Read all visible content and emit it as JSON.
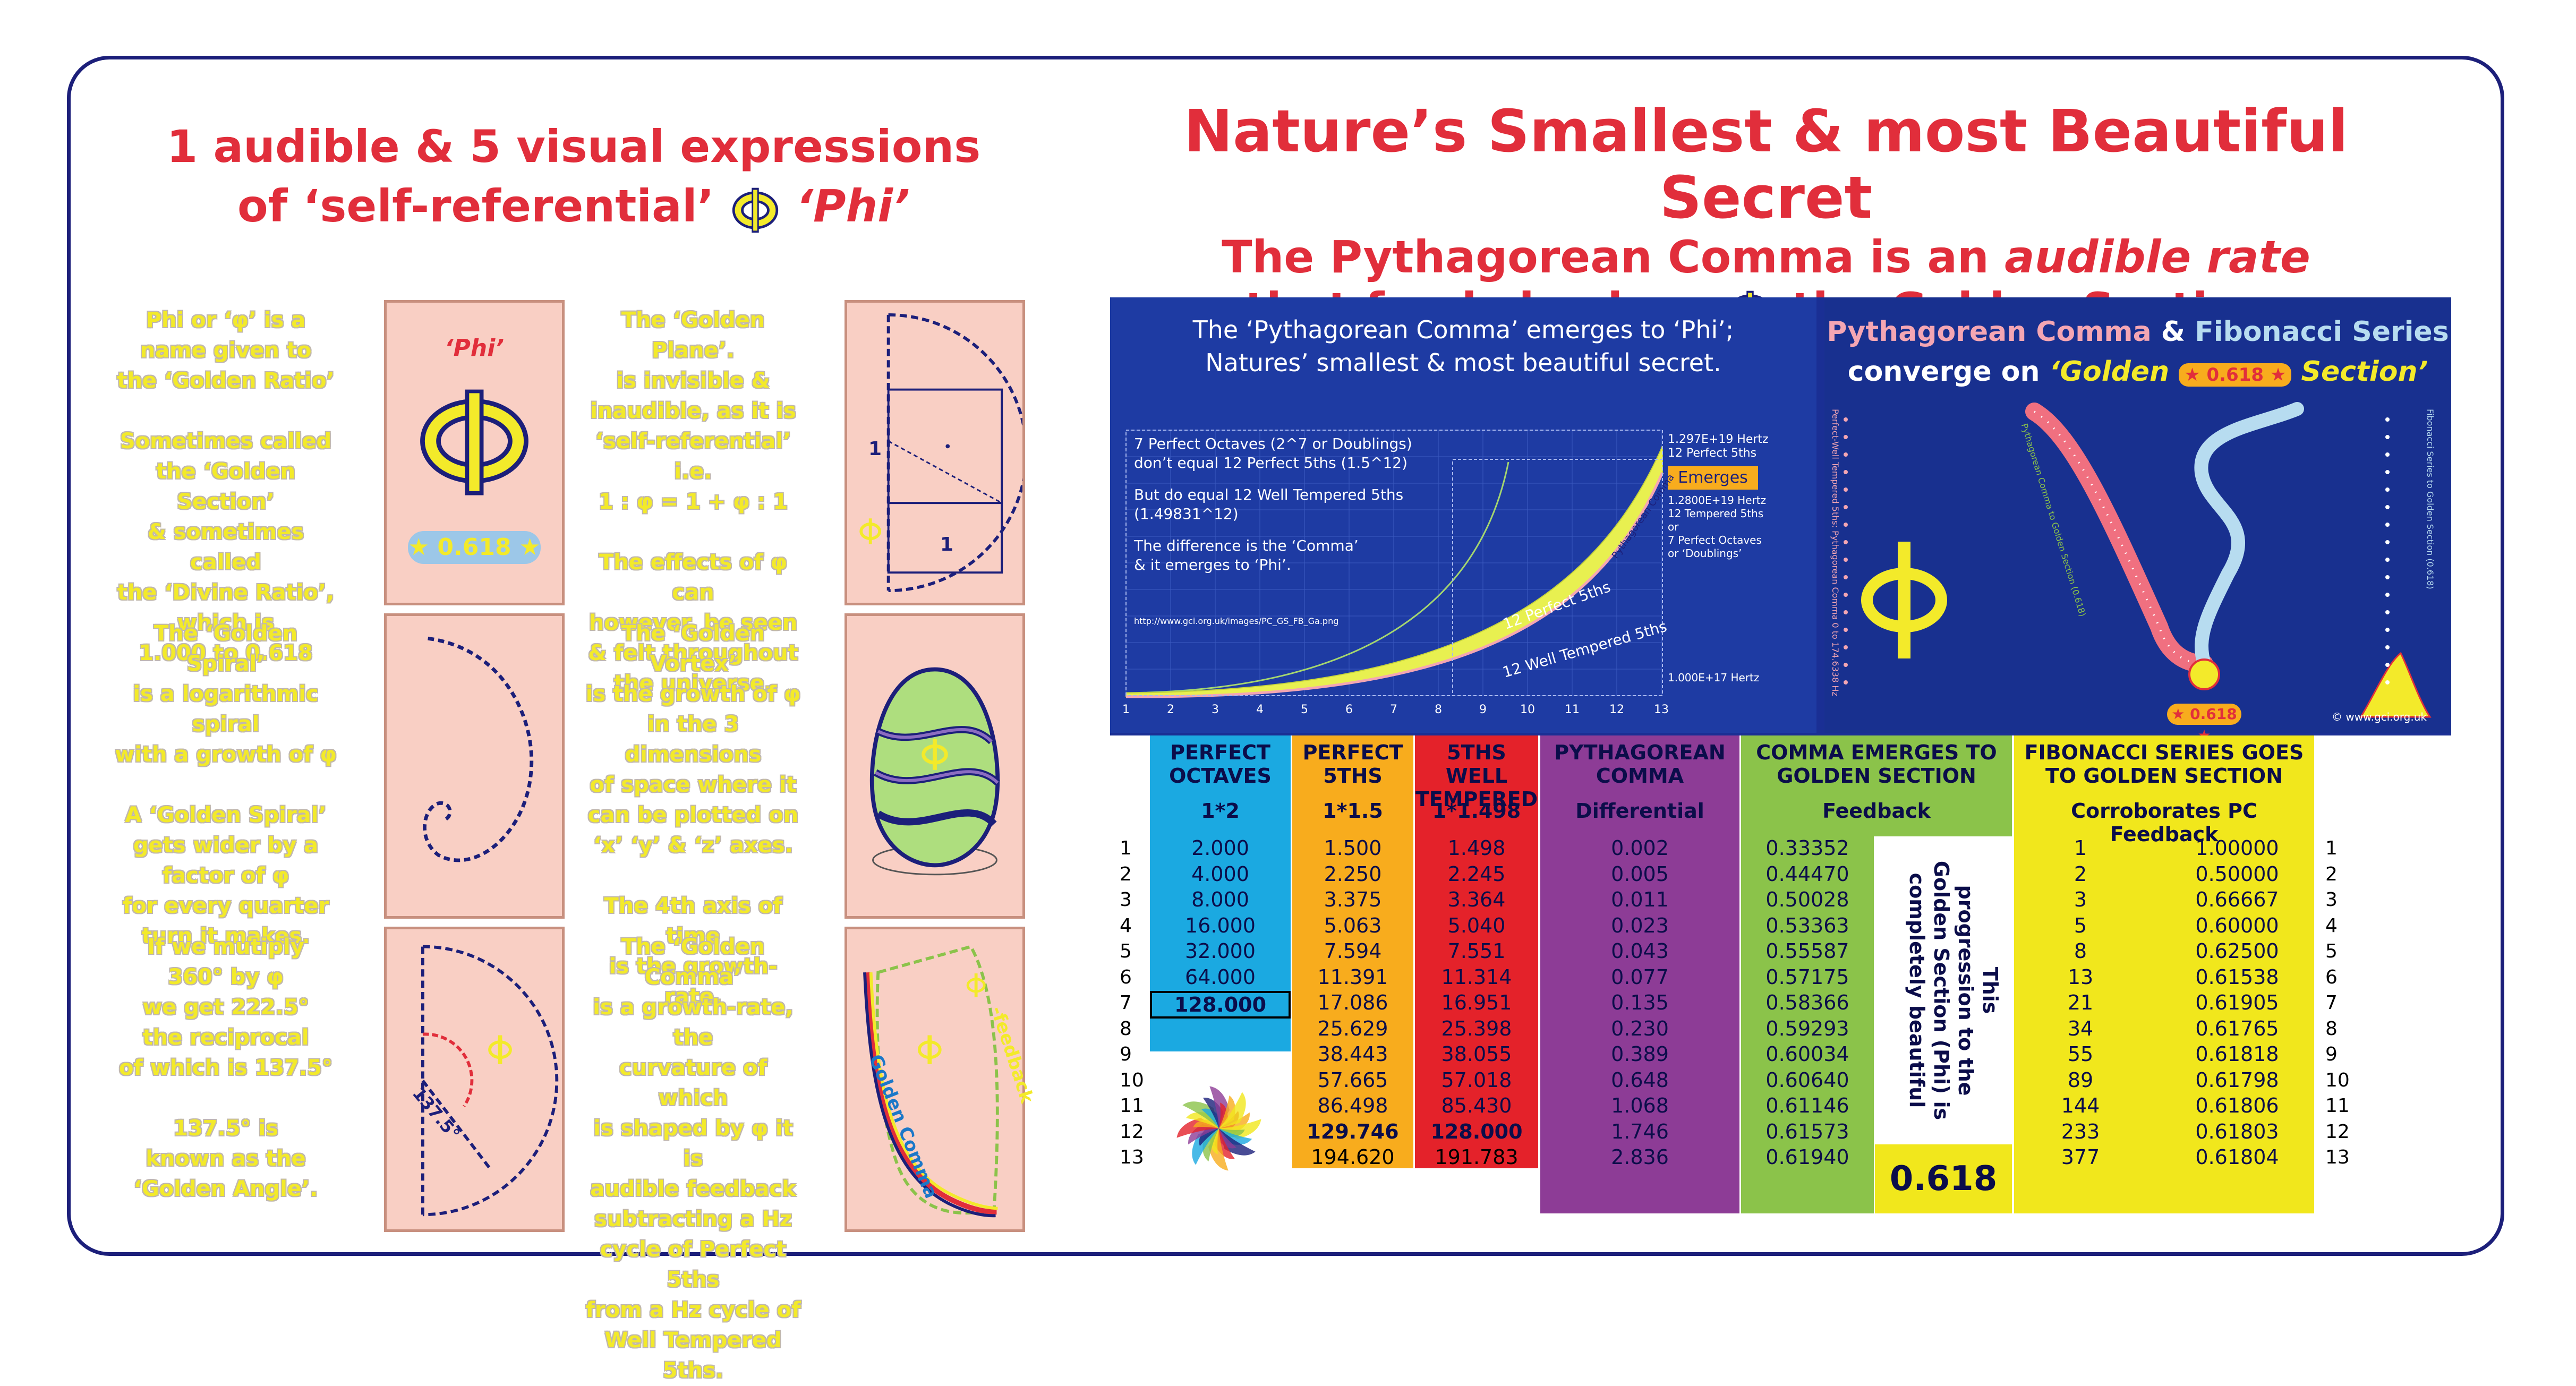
{
  "left_title": {
    "line1": "1 audible & 5 visual expressions",
    "line2a": "of ‘self-referential’",
    "line2b": "‘Phi’"
  },
  "right_title": {
    "line1": "Nature’s Smallest & most Beautiful Secret",
    "line2a": "The Pythagorean Comma is an ",
    "line2b": "audible rate",
    "line3a": "that feeds back as",
    "line3b": "the Golden Section."
  },
  "text_blocks": {
    "phi": [
      "Phi or ‘φ’ is a",
      "name given to",
      "the ‘Golden Ratio’",
      "",
      "Sometimes called",
      "the ‘Golden Section’",
      "& sometimes called",
      "the ‘Divine Ratio’,",
      "which is",
      "1.000 to 0.618"
    ],
    "plane": [
      "The ‘Golden Plane’.",
      "is invisible &",
      "inaudible, as it is",
      "‘self-referential’ i.e.",
      "1 : φ = 1 + φ : 1",
      "",
      "The effects of φ can",
      "however, be seen",
      "& felt throughout",
      "the universe."
    ],
    "spiral": [
      "The ‘Golden Spiral’",
      "is a logarithmic spiral",
      "with a growth of φ",
      "",
      "A ‘Golden Spiral’",
      "gets wider by a",
      "factor of φ",
      "for every quarter",
      "turn it makes."
    ],
    "vortex": [
      "The ‘Golden Vortex’",
      "is the growth of φ",
      "in the 3 dimensions",
      "of space where it",
      "can be plotted on",
      "‘x’ ‘y’ & ‘z’ axes.",
      "",
      "The 4th axis of time",
      "is the growth-rate."
    ],
    "angle": [
      "If we mutiply",
      "360° by φ",
      "we get 222.5°",
      "the reciprocal",
      "of which is 137.5°",
      "",
      "137.5° is",
      "known as the",
      "‘Golden Angle’."
    ],
    "comma": [
      "The ‘Golden Comma’",
      "is a growth-rate, the",
      "curvature of which",
      "is shaped by φ it is",
      "audible feedback",
      "subtracting a Hz",
      "cycle of Perfect 5ths",
      "from a Hz cycle of",
      "Well Tempered 5ths."
    ]
  },
  "panels": {
    "phi_label": "‘Phi’",
    "phi_value": "★ 0.618 ★",
    "plane_one_a": "1",
    "plane_one_b": "1",
    "angle_label": "137.5°",
    "comma_golden": "Golden Comma",
    "comma_feedback": "-feedback"
  },
  "chart": {
    "title1": "The ‘Pythagorean Comma’ emerges to ‘Phi’;",
    "title2": "Natures’ smallest & most beautiful secret.",
    "note1": "7 Perfect Octaves (2^7 or Doublings)",
    "note2": "don’t equal 12 Perfect 5ths (1.5^12)",
    "note3": "But do equal 12 Well Tempered 5ths",
    "note4": "(1.49831^12)",
    "note5": "The difference is the ‘Comma’",
    "note6": "& it emerges to ‘Phi’.",
    "url": "http://www.gci.org.uk/images/PC_GS_FB_Ga.png",
    "top_hz1": "1.297E+19 Hertz",
    "top_hz2": "12 Perfect 5ths",
    "emerges": "Emerges",
    "mid1": "1.2800E+19 Hertz",
    "mid2": "12 Tempered 5ths",
    "mid3": "or",
    "mid4": "7 Perfect Octaves",
    "mid5": "or ‘Doublings’",
    "bottom_hz": "1.000E+17 Hertz",
    "label_p5": "12 Perfect 5ths",
    "label_wt": "12 Well Tempered 5ths",
    "label_pc": "Pythagorean Comma",
    "x_ticks": [
      "1",
      "2",
      "3",
      "4",
      "5",
      "6",
      "7",
      "8",
      "9",
      "10",
      "11",
      "12",
      "13"
    ]
  },
  "right_panel": {
    "t1a": "Pythagorean Comma",
    "t1b": " & ",
    "t1c": "Fibonacci Series",
    "t2a": "converge on ",
    "t2b": "‘Golden",
    "t2c": "★ 0.618 ★",
    "t2d": "Section’",
    "badge": "★ 0.618 ★",
    "credit": "© www.gci.org.uk",
    "vert1": "Perfect-Well Tempered 5ths: Pythagorean Comma 0 to 174.6338 Hz",
    "vert2": "Pythagorean Comma to Golden Section (0.618)",
    "vert3": "Fibonacci Series to Golden Section (0.618)"
  },
  "table": {
    "headers": {
      "oct": [
        "PERFECT",
        "OCTAVES"
      ],
      "p5": [
        "PERFECT",
        "5THS"
      ],
      "wt": [
        "5THS WELL",
        "TEMPERED"
      ],
      "pc": [
        "PYTHAGOREAN",
        "COMMA"
      ],
      "ce": [
        "COMMA EMERGES TO",
        "GOLDEN SECTION"
      ],
      "fib": [
        "FIBONACCI SERIES GOES",
        "TO GOLDEN SECTION"
      ]
    },
    "subs": {
      "oct": "1*2",
      "p5": "1*1.5",
      "wt": "1*1.498",
      "pc": "Differential",
      "ce": "Feedback",
      "fib": "Corroborates PC Feedback"
    },
    "row_numbers": [
      "1",
      "2",
      "3",
      "4",
      "5",
      "6",
      "7",
      "8",
      "9",
      "10",
      "11",
      "12",
      "13"
    ],
    "octaves": [
      "2.000",
      "4.000",
      "8.000",
      "16.000",
      "32.000",
      "64.000",
      "128.000"
    ],
    "perfect5": [
      "1.500",
      "2.250",
      "3.375",
      "5.063",
      "7.594",
      "11.391",
      "17.086",
      "25.629",
      "38.443",
      "57.665",
      "86.498",
      "129.746",
      "194.620"
    ],
    "tempered": [
      "1.498",
      "2.245",
      "3.364",
      "5.040",
      "7.551",
      "11.314",
      "16.951",
      "25.398",
      "38.055",
      "57.018",
      "85.430",
      "128.000",
      "191.783"
    ],
    "comma": [
      "0.002",
      "0.005",
      "0.011",
      "0.023",
      "0.043",
      "0.077",
      "0.135",
      "0.230",
      "0.389",
      "0.648",
      "1.068",
      "1.746",
      "2.836"
    ],
    "feedback": [
      "0.33352",
      "0.44470",
      "0.50028",
      "0.53363",
      "0.55587",
      "0.57175",
      "0.58366",
      "0.59293",
      "0.60034",
      "0.60640",
      "0.61146",
      "0.61573",
      "0.61940"
    ],
    "progression_note": [
      "This",
      "progression to the",
      "Golden Section (Phi) is",
      "completely beautiful"
    ],
    "golden_value": "0.618",
    "fib_n": [
      "1",
      "2",
      "3",
      "5",
      "8",
      "13",
      "21",
      "34",
      "55",
      "89",
      "144",
      "233",
      "377"
    ],
    "fib_ratio": [
      "1.00000",
      "0.50000",
      "0.66667",
      "0.60000",
      "0.62500",
      "0.61538",
      "0.61905",
      "0.61765",
      "0.61818",
      "0.61798",
      "0.61806",
      "0.61803",
      "0.61804"
    ]
  },
  "colors": {
    "title_red": "#e12e3b",
    "frame_navy": "#1c1f7a",
    "phi_yellow": "#f3ea2a",
    "panel_pink": "#f9cfc4",
    "oct_blue": "#1ba9e1",
    "p5_orange": "#f8ac1d",
    "wt_red": "#e4222a",
    "pc_purple": "#8d3c96",
    "ce_green": "#8bc34a",
    "fib_yellow": "#f1e71c"
  }
}
